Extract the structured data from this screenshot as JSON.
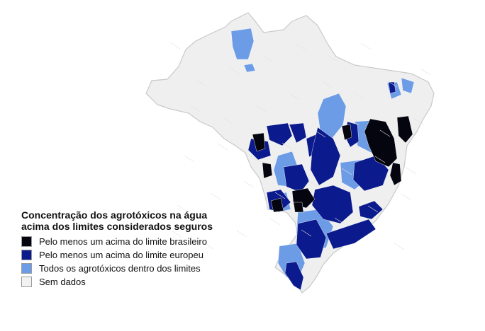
{
  "legend": {
    "title_line1": "Concentração dos agrotóxicos na água",
    "title_line2": "acima dos limites considerados seguros",
    "items": [
      {
        "label": "Pelo menos um acima do limite brasileiro",
        "color": "#050510"
      },
      {
        "label": "Pelo menos um acima do limite europeu",
        "color": "#0b1a8c"
      },
      {
        "label": "Todos os agrotóxicos dentro dos limites",
        "color": "#6d9ce6"
      },
      {
        "label": "Sem dados",
        "color": "#f2f2f2"
      }
    ]
  },
  "map": {
    "region": "Brasil",
    "base_color": "#efefef",
    "border_color": "#c9c9c9"
  }
}
